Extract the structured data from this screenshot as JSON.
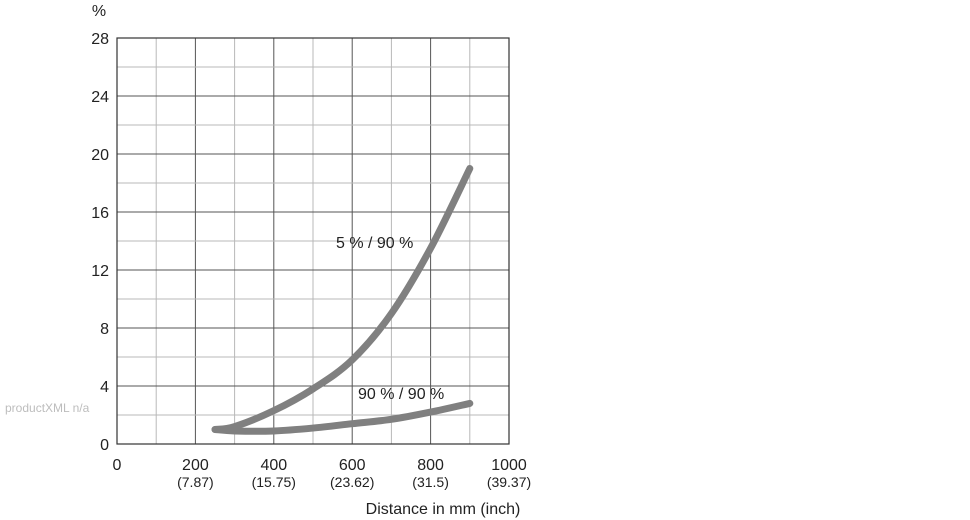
{
  "watermark": "productXML n/a",
  "chart_data": {
    "type": "line",
    "title": "",
    "xlabel": "Distance in mm (inch)",
    "ylabel": "%",
    "xlim": [
      0,
      1000
    ],
    "ylim": [
      0,
      28
    ],
    "grid": true,
    "legend": "none",
    "x_ticks": [
      {
        "value": 0,
        "label": "0",
        "sub": ""
      },
      {
        "value": 200,
        "label": "200",
        "sub": "(7.87)"
      },
      {
        "value": 400,
        "label": "400",
        "sub": "(15.75)"
      },
      {
        "value": 600,
        "label": "600",
        "sub": "(23.62)"
      },
      {
        "value": 800,
        "label": "800",
        "sub": "(31.5)"
      },
      {
        "value": 1000,
        "label": "1000",
        "sub": "(39.37)"
      }
    ],
    "y_ticks": [
      0,
      4,
      8,
      12,
      16,
      20,
      24,
      28
    ],
    "series": [
      {
        "name": "5 % / 90 %",
        "color": "#808080",
        "x": [
          250,
          300,
          400,
          500,
          600,
          700,
          800,
          900
        ],
        "y": [
          1.0,
          1.2,
          2.3,
          3.8,
          5.8,
          9.0,
          13.5,
          19.0
        ]
      },
      {
        "name": "90 % / 90 %",
        "color": "#808080",
        "x": [
          250,
          300,
          400,
          500,
          600,
          700,
          800,
          900
        ],
        "y": [
          1.0,
          0.9,
          0.9,
          1.1,
          1.4,
          1.7,
          2.2,
          2.8
        ]
      }
    ]
  }
}
